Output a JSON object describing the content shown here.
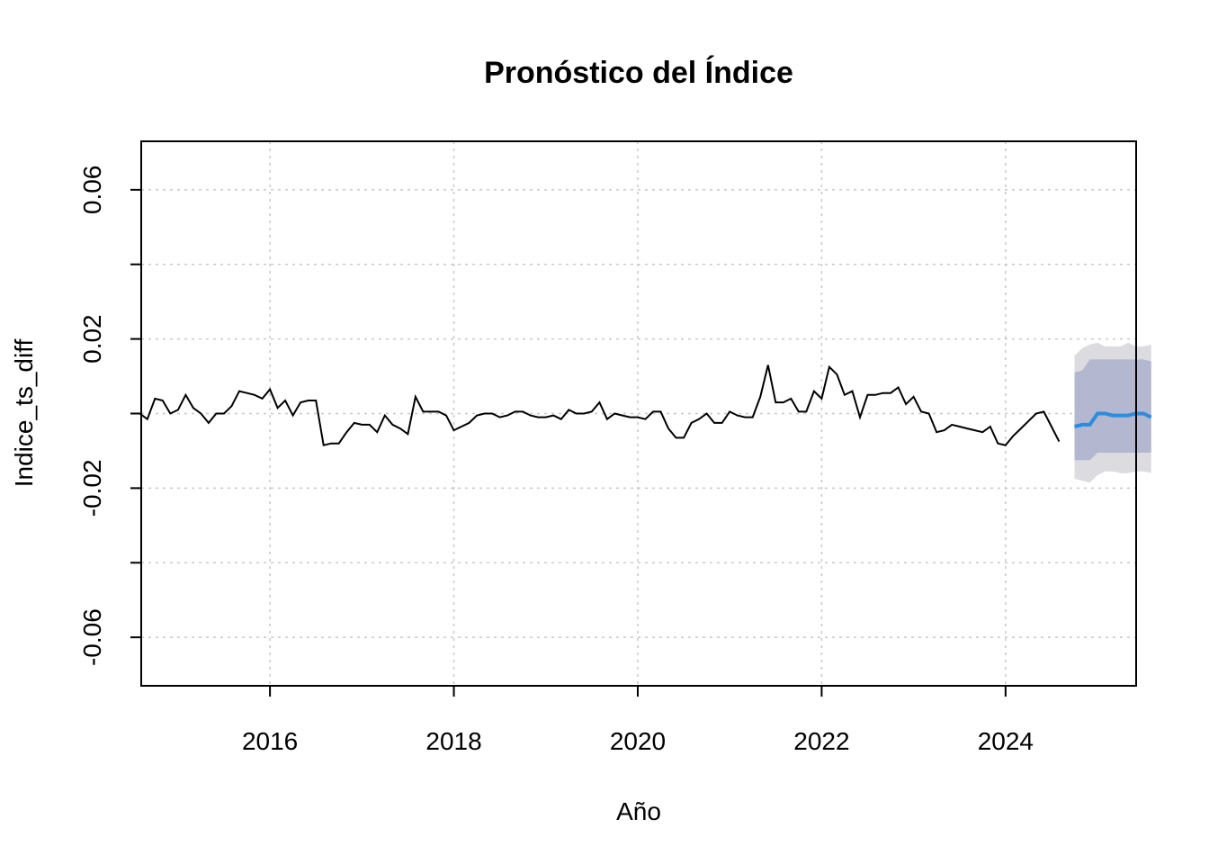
{
  "chart_data": {
    "type": "line",
    "title": "Pronóstico del Índice",
    "xlabel": "Año",
    "ylabel": "Indice_ts_diff",
    "xlim": [
      2014.6,
      2025.42
    ],
    "ylim": [
      -0.073,
      0.073
    ],
    "x_ticks": [
      2016,
      2018,
      2020,
      2022,
      2024
    ],
    "x_tick_labels": [
      "2016",
      "2018",
      "2020",
      "2022",
      "2024"
    ],
    "y_ticks": [
      -0.06,
      -0.04,
      -0.02,
      0.0,
      0.02,
      0.04,
      0.06
    ],
    "y_tick_labels": [
      "-0.06",
      "",
      "-0.02",
      "",
      "0.02",
      "",
      "0.06"
    ],
    "grid": true,
    "series": [
      {
        "start": 2014.583,
        "frequency": 12,
        "color": "#000000",
        "values": [
          0.0,
          -0.0015,
          0.004,
          0.0035,
          0.0,
          0.001,
          0.005,
          0.0015,
          0.0,
          -0.0025,
          0.0,
          0.0,
          0.002,
          0.006,
          0.0055,
          0.005,
          0.004,
          0.0065,
          0.0015,
          0.0035,
          -0.0005,
          0.003,
          0.0035,
          0.0035,
          -0.0085,
          -0.008,
          -0.008,
          -0.005,
          -0.0025,
          -0.003,
          -0.003,
          -0.005,
          -0.0005,
          -0.003,
          -0.004,
          -0.0055,
          0.0045,
          0.0005,
          0.0005,
          0.0005,
          -0.0005,
          -0.0045,
          -0.0035,
          -0.0025,
          -0.0005,
          0.0,
          0.0,
          -0.001,
          -0.0005,
          0.0005,
          0.0005,
          -0.0005,
          -0.001,
          -0.001,
          -0.0005,
          -0.0015,
          0.001,
          0.0,
          0.0,
          0.0005,
          0.003,
          -0.0015,
          0.0,
          -0.0005,
          -0.001,
          -0.001,
          -0.0015,
          0.0005,
          0.0005,
          -0.004,
          -0.0065,
          -0.0065,
          -0.0025,
          -0.0015,
          0.0,
          -0.0025,
          -0.0025,
          0.0005,
          -0.0005,
          -0.001,
          -0.001,
          0.0045,
          0.013,
          0.003,
          0.003,
          0.004,
          0.0005,
          0.0005,
          0.006,
          0.004,
          0.0125,
          0.0105,
          0.005,
          0.006,
          -0.001,
          0.005,
          0.005,
          0.0055,
          0.0055,
          0.007,
          0.0025,
          0.0045,
          0.0005,
          0.0,
          -0.005,
          -0.0045,
          -0.003,
          -0.0035,
          -0.004,
          -0.0045,
          -0.005,
          -0.0035,
          -0.008,
          -0.0085,
          -0.006,
          -0.004,
          -0.002,
          0.0,
          0.0005,
          -0.0035,
          -0.0075
        ]
      },
      {
        "name": "forecast",
        "start": 2024.75,
        "frequency": 12,
        "color": "#2a8ddf",
        "values": [
          -0.0035,
          -0.003,
          -0.003,
          0.0,
          0.0,
          -0.0005,
          -0.0005,
          -0.0005,
          0.0,
          0.0,
          -0.001
        ],
        "hi80": [
          0.011,
          0.0115,
          0.0145,
          0.0145,
          0.0145,
          0.0145,
          0.0145,
          0.0145,
          0.0145,
          0.0145,
          0.014
        ],
        "lo80": [
          -0.0125,
          -0.0125,
          -0.0125,
          -0.0105,
          -0.0105,
          -0.0105,
          -0.0105,
          -0.0105,
          -0.0105,
          -0.0105,
          -0.0105
        ],
        "hi95": [
          0.0155,
          0.0175,
          0.0185,
          0.019,
          0.018,
          0.018,
          0.018,
          0.019,
          0.018,
          0.018,
          0.0185
        ],
        "lo95": [
          -0.0175,
          -0.018,
          -0.0185,
          -0.0165,
          -0.0155,
          -0.0155,
          -0.016,
          -0.016,
          -0.0155,
          -0.0155,
          -0.016
        ]
      }
    ],
    "colors": {
      "band80": "#b3b7cf",
      "band95": "#dcdce0",
      "grid": "#c8c8c8"
    }
  }
}
